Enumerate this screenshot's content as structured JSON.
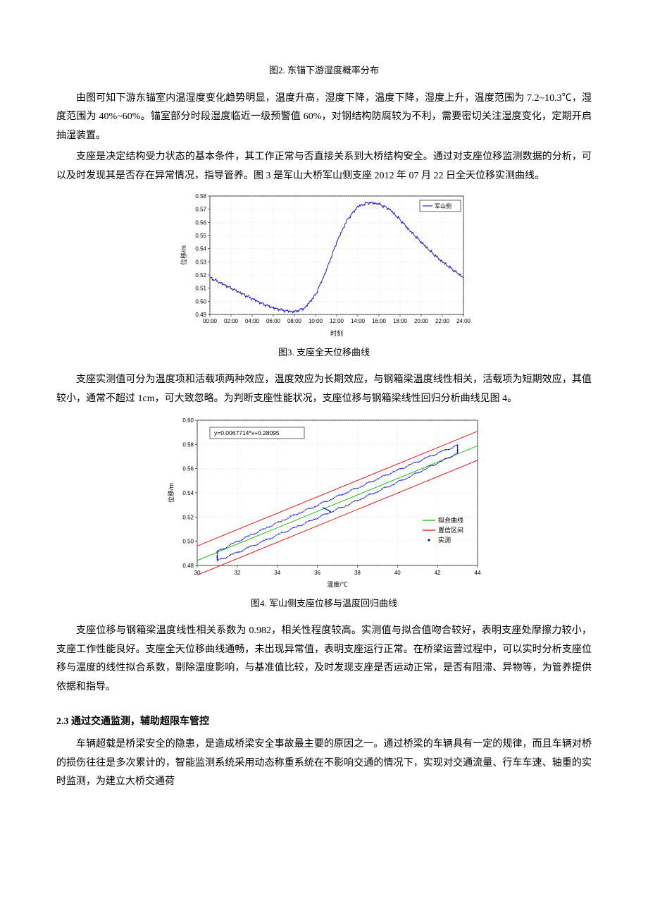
{
  "fig2": {
    "caption": "图2. 东锚下游湿度概率分布"
  },
  "para1": "由图可知下游东锚室内温湿度变化趋势明显，温度升高，湿度下降，温度下降，湿度上升，温度范围为 7.2~10.3℃，湿度范围为 40%~60%。锚室部分时段湿度临近一级预警值 60%，对钢结构防腐较为不利，需要密切关注湿度变化，定期开启抽湿装置。",
  "para2": "支座是决定结构受力状态的基本条件，其工作正常与否直接关系到大桥结构安全。通过对支座位移监测数据的分析，可以及时发现其是否存在异常情况，指导管养。图 3 是军山大桥军山侧支座 2012 年 07 月 22 日全天位移实测曲线。",
  "chart3": {
    "type": "line",
    "legend_label": "军山侧",
    "xlabel": "时刻",
    "ylabel": "位移/m",
    "xlim": [
      0,
      24
    ],
    "ylim": [
      0.49,
      0.58
    ],
    "xticks": [
      "00:00",
      "02:00",
      "04:00",
      "06:00",
      "08:00",
      "10:00",
      "12:00",
      "14:00",
      "16:00",
      "18:00",
      "20:00",
      "22:00",
      "24:00"
    ],
    "yticks": [
      0.49,
      0.5,
      0.51,
      0.52,
      0.53,
      0.54,
      0.55,
      0.56,
      0.57,
      0.58
    ],
    "line_color": "#0000ff",
    "grid_color": "#c8c8c8",
    "background_color": "#ffffff",
    "axis_fontsize": 8,
    "label_fontsize": 9,
    "data_hours": [
      0,
      1,
      2,
      3,
      4,
      5,
      6,
      7,
      8,
      9,
      10,
      11,
      12,
      13,
      14,
      15,
      16,
      17,
      18,
      19,
      20,
      21,
      22,
      23,
      24
    ],
    "data_values": [
      0.518,
      0.514,
      0.51,
      0.506,
      0.502,
      0.498,
      0.495,
      0.493,
      0.492,
      0.495,
      0.505,
      0.523,
      0.545,
      0.562,
      0.572,
      0.575,
      0.574,
      0.57,
      0.562,
      0.553,
      0.545,
      0.537,
      0.53,
      0.524,
      0.518
    ],
    "noise_amplitude": 0.0015
  },
  "fig3": {
    "caption": "图3.   支座全天位移曲线"
  },
  "para3": "支座实测值可分为温度项和活载项两种效应，温度效应为长期效应，与钢箱梁温度线性相关，活载项为短期效应，其值较小，通常不超过 1cm，可大致忽略。为判断支座性能状况，支座位移与钢箱梁线性回归分析曲线见图 4。",
  "chart4": {
    "type": "scatter",
    "equation": "y=0.0067714*x+0.28095",
    "xlabel": "温度/℃",
    "ylabel": "位移/m",
    "xlim": [
      30,
      44
    ],
    "ylim": [
      0.48,
      0.6
    ],
    "xticks": [
      30,
      32,
      34,
      36,
      38,
      40,
      42,
      44
    ],
    "yticks": [
      0.48,
      0.5,
      0.52,
      0.54,
      0.56,
      0.58,
      0.6
    ],
    "fit_color": "#00c000",
    "conf_color": "#ff0000",
    "scatter_color": "#0000ff",
    "grid_color": "#c8c8c8",
    "background_color": "#ffffff",
    "axis_fontsize": 8,
    "label_fontsize": 9,
    "slope": 0.0067714,
    "intercept": 0.28095,
    "conf_offset": 0.012,
    "legend": {
      "fit": "拟合曲线",
      "conf": "置信区间",
      "meas": "实测"
    },
    "loop_temps": [
      31.0,
      31.8,
      32.6,
      33.4,
      34.2,
      35.0,
      35.8,
      36.6,
      37.4,
      38.2,
      39.0,
      39.8,
      40.6,
      41.4,
      42.2,
      43.0,
      43.0,
      42.2,
      41.4,
      40.6,
      39.8,
      39.0,
      38.2,
      37.4,
      36.6,
      35.8,
      35.0,
      34.2,
      33.4,
      32.6,
      31.8,
      31.0
    ],
    "loop_offset": [
      -0.007,
      -0.007,
      -0.0068,
      -0.0065,
      -0.006,
      -0.0058,
      -0.0055,
      -0.005,
      -0.0048,
      -0.0042,
      -0.0038,
      -0.0032,
      -0.0025,
      -0.0015,
      -0.0005,
      0.0005,
      0.007,
      0.0072,
      0.0072,
      0.007,
      0.0068,
      0.0065,
      0.006,
      0.0058,
      0.0055,
      0.005,
      0.0048,
      0.0042,
      0.0035,
      0.0028,
      0.0018,
      0.0005
    ]
  },
  "fig4": {
    "caption": "图4.   军山侧支座位移与温度回归曲线"
  },
  "para4": "支座位移与钢箱梁温度线性相关系数为 0.982，相关性程度较高。实测值与拟合值吻合较好，表明支座处摩擦力较小，支座工作性能良好。支座全天位移曲线通畅，未出现异常值，表明支座运行正常。在桥梁运营过程中，可以实时分析支座位移与温度的线性拟合系数，剔除温度影响，与基准值比较，及时发现支座是否运动正常，是否有阻滞、异物等，为管养提供依据和指导。",
  "heading23": "2.3 通过交通监测，辅助超限车管控",
  "para5": "车辆超载是桥梁安全的隐患，是造成桥梁安全事故最主要的原因之一。通过桥梁的车辆具有一定的规律，而且车辆对桥的损伤往往是多次累计的，智能监测系统采用动态称重系统在不影响交通的情况下，实现对交通流量、行车车速、轴重的实时监测，为建立大桥交通荷"
}
